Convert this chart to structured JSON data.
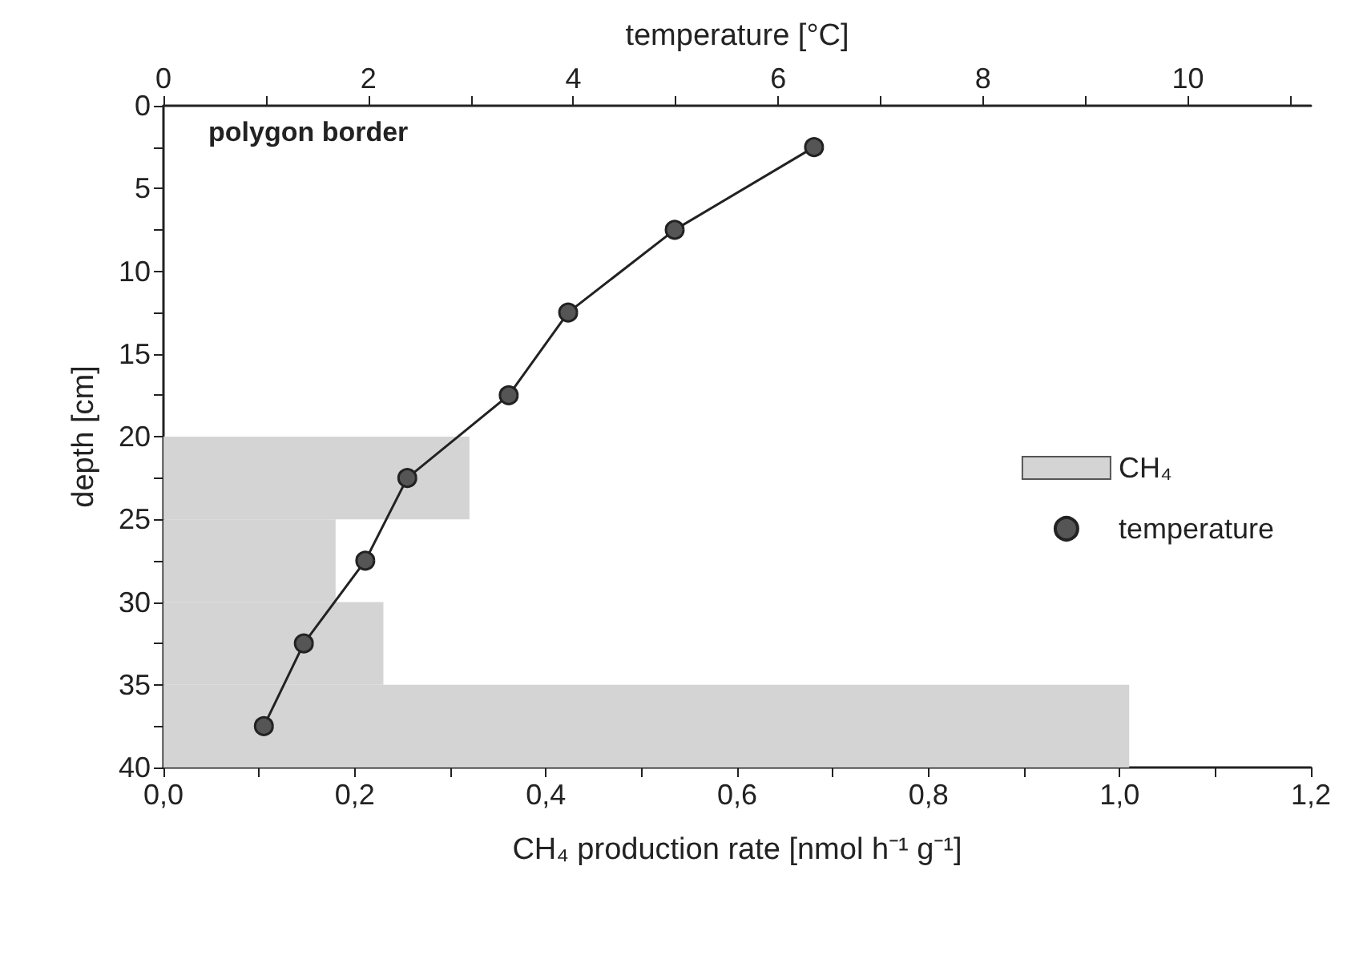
{
  "chart_data": {
    "type": "bar",
    "orientation": "horizontal",
    "xlabel": "CH₄ production rate [nmol h⁻¹ g⁻¹]",
    "ylabel": "depth [cm]",
    "x2label": "temperature [°C]",
    "annotations": [
      "polygon border"
    ],
    "xlim": [
      0,
      1.2
    ],
    "xticks": [
      {
        "value": 0,
        "label": "0,0"
      },
      {
        "value": 0.1,
        "label": null
      },
      {
        "value": 0.2,
        "label": "0,2"
      },
      {
        "value": 0.3,
        "label": null
      },
      {
        "value": 0.4,
        "label": "0,4"
      },
      {
        "value": 0.5,
        "label": null
      },
      {
        "value": 0.6,
        "label": "0,6"
      },
      {
        "value": 0.7,
        "label": null
      },
      {
        "value": 0.8,
        "label": "0,8"
      },
      {
        "value": 0.9,
        "label": null
      },
      {
        "value": 1.0,
        "label": "1,0"
      },
      {
        "value": 1.1,
        "label": null
      },
      {
        "value": 1.2,
        "label": "1,2"
      }
    ],
    "x2lim": [
      0,
      11.2
    ],
    "x2ticks": [
      0,
      {
        "value": 1,
        "label": null
      },
      2,
      {
        "value": 3,
        "label": null
      },
      4,
      {
        "value": 5,
        "label": null
      },
      6,
      {
        "value": 7,
        "label": null
      },
      8,
      {
        "value": 9,
        "label": null
      },
      10,
      {
        "value": 11,
        "label": null
      }
    ],
    "ylim": [
      40,
      0
    ],
    "yticks": [
      0,
      {
        "value": 2.5,
        "label": null
      },
      5,
      {
        "value": 7.5,
        "label": null
      },
      10,
      {
        "value": 12.5,
        "label": null
      },
      15,
      {
        "value": 17.5,
        "label": null
      },
      20,
      {
        "value": 22.5,
        "label": null
      },
      25,
      {
        "value": 27.5,
        "label": null
      },
      30,
      {
        "value": 32.5,
        "label": null
      },
      35,
      {
        "value": 37.5,
        "label": null
      },
      40
    ],
    "legend": "right",
    "grid": false,
    "series": [
      {
        "name": "CH₄",
        "type": "histogram",
        "color": "#d4d4d4",
        "bins": [
          20,
          25,
          30,
          35,
          40
        ],
        "values": [
          0.32,
          0.18,
          0.23,
          1.01
        ]
      },
      {
        "name": "temperature",
        "type": "line",
        "axis": "x2",
        "color": "#222222",
        "marker": "circle",
        "line_style": "solid",
        "x": [
          2.5,
          7.5,
          12.5,
          17.5,
          22.5,
          27.5,
          32.5,
          37.5
        ],
        "values": [
          6.35,
          4.99,
          3.95,
          3.37,
          2.38,
          1.97,
          1.37,
          0.98
        ]
      }
    ]
  }
}
